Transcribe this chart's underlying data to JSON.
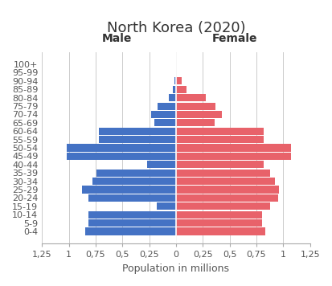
{
  "title": "North Korea (2020)",
  "xlabel": "Population in millions",
  "age_groups": [
    "0-4",
    "5-9",
    "10-14",
    "15-19",
    "20-24",
    "25-29",
    "30-34",
    "35-39",
    "40-44",
    "45-49",
    "50-54",
    "55-59",
    "60-64",
    "65-69",
    "70-74",
    "75-79",
    "80-84",
    "85-89",
    "90-94",
    "95-99",
    "100+"
  ],
  "male": [
    0.85,
    0.82,
    0.82,
    0.18,
    0.82,
    0.88,
    0.78,
    0.74,
    0.27,
    1.02,
    1.02,
    0.72,
    0.72,
    0.2,
    0.23,
    0.17,
    0.07,
    0.03,
    0.015,
    0.003,
    0.001
  ],
  "female": [
    0.83,
    0.8,
    0.8,
    0.88,
    0.95,
    0.96,
    0.92,
    0.88,
    0.82,
    1.07,
    1.07,
    0.82,
    0.82,
    0.36,
    0.43,
    0.37,
    0.28,
    0.1,
    0.05,
    0.003,
    0.001
  ],
  "male_color": "#4472C4",
  "female_color": "#E8626A",
  "xlim": 1.25,
  "background_color": "#FFFFFF",
  "male_label": "Male",
  "female_label": "Female",
  "title_fontsize": 13,
  "label_fontsize": 9,
  "tick_fontsize": 8,
  "xtick_vals": [
    -1.25,
    -1.0,
    -0.75,
    -0.5,
    -0.25,
    0.0,
    0.25,
    0.5,
    0.75,
    1.0,
    1.25
  ],
  "xtick_labels": [
    "1,25",
    "1",
    "0,75",
    "0,5",
    "0,25",
    "0",
    "0,25",
    "0,5",
    "0,75",
    "1",
    "1,25"
  ]
}
